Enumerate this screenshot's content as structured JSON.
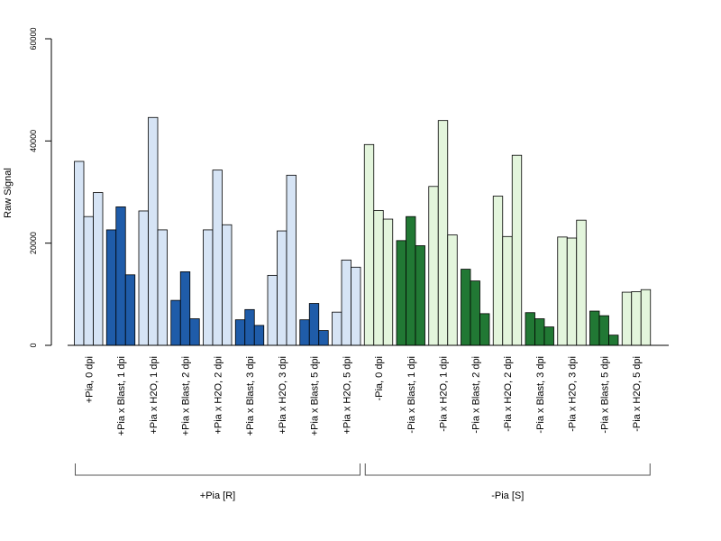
{
  "chart_data": {
    "type": "bar",
    "title": "",
    "xlabel": "",
    "ylabel": "Raw Signal",
    "ylim": [
      0,
      60000
    ],
    "yticks": [
      0,
      20000,
      40000,
      60000
    ],
    "grid": false,
    "legend": "none",
    "colors": {
      "plus_light": "#d6e4f5",
      "plus_dark": "#1f5ca9",
      "minus_light": "#e3f5dc",
      "minus_dark": "#217834"
    },
    "categories": [
      "+Pia, 0 dpi",
      "+Pia x Blast, 1 dpi",
      "+Pia x H2O, 1 dpi",
      "+Pia x Blast, 2 dpi",
      "+Pia x H2O, 2 dpi",
      "+Pia x Blast, 3 dpi",
      "+Pia x H2O, 3 dpi",
      "+Pia x Blast, 5 dpi",
      "+Pia x H2O, 5 dpi",
      "-Pia, 0 dpi",
      "-Pia x Blast, 1 dpi",
      "-Pia x H2O, 1 dpi",
      "-Pia x Blast, 2 dpi",
      "-Pia x H2O, 2 dpi",
      "-Pia x Blast, 3 dpi",
      "-Pia x H2O, 3 dpi",
      "-Pia x Blast, 5 dpi",
      "-Pia x H2O, 5 dpi"
    ],
    "color_keys": [
      "plus_light",
      "plus_dark",
      "plus_light",
      "plus_dark",
      "plus_light",
      "plus_dark",
      "plus_light",
      "plus_dark",
      "plus_light",
      "minus_light",
      "minus_dark",
      "minus_light",
      "minus_dark",
      "minus_light",
      "minus_dark",
      "minus_light",
      "minus_dark",
      "minus_light"
    ],
    "replicates": [
      [
        36000,
        25200,
        29900
      ],
      [
        22600,
        27100,
        13800
      ],
      [
        26300,
        44600,
        22600
      ],
      [
        8800,
        14400,
        5200
      ],
      [
        22600,
        34300,
        23600
      ],
      [
        5000,
        7000,
        3900
      ],
      [
        13700,
        22400,
        33300
      ],
      [
        5000,
        8200,
        2900
      ],
      [
        6500,
        16700,
        15300
      ],
      [
        39300,
        26400,
        24700
      ],
      [
        20500,
        25200,
        19500
      ],
      [
        31100,
        44000,
        21600
      ],
      [
        14900,
        12600,
        6200
      ],
      [
        29200,
        21300,
        37200
      ],
      [
        6400,
        5200,
        3600
      ],
      [
        21200,
        21000,
        24500
      ],
      [
        6700,
        5800,
        2000
      ],
      [
        10400,
        10500,
        10900
      ]
    ],
    "groups": [
      {
        "label": "+Pia [R]",
        "first": 0,
        "last": 8
      },
      {
        "label": "-Pia [S]",
        "first": 9,
        "last": 17
      }
    ]
  }
}
